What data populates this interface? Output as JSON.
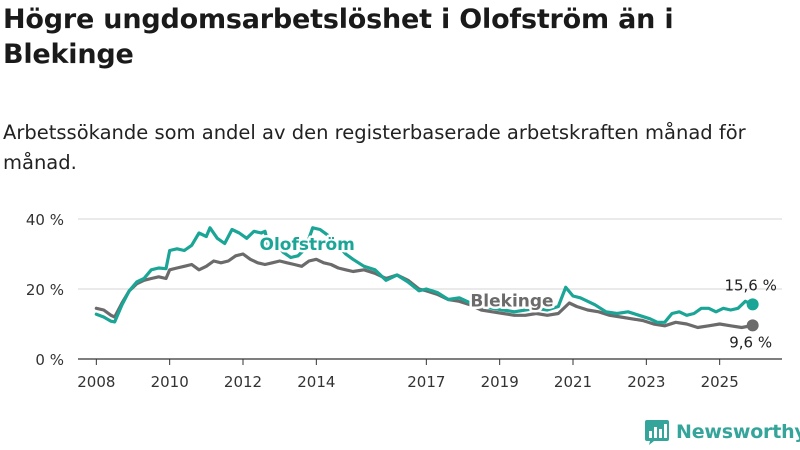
{
  "chart_data": {
    "type": "line",
    "title": "Högre ungdomsarbetslöshet i Olofström än i Blekinge",
    "subtitle": "Arbetssökande som andel av den registerbaserade arbetskraften månad för månad.",
    "ylim": [
      0,
      40
    ],
    "y_ticks": [
      {
        "value": 0,
        "label": "0 %"
      },
      {
        "value": 20,
        "label": "20 %"
      },
      {
        "value": 40,
        "label": "40 %"
      }
    ],
    "xlim": [
      2007.5,
      2026.7
    ],
    "x_ticks": [
      {
        "value": 2008,
        "label": "2008"
      },
      {
        "value": 2010,
        "label": "2010"
      },
      {
        "value": 2012,
        "label": "2012"
      },
      {
        "value": 2014,
        "label": "2014"
      },
      {
        "value": 2017,
        "label": "2017"
      },
      {
        "value": 2019,
        "label": "2019"
      },
      {
        "value": 2021,
        "label": "2021"
      },
      {
        "value": 2023,
        "label": "2023"
      },
      {
        "value": 2025,
        "label": "2025"
      }
    ],
    "series": [
      {
        "name": "Olofström",
        "color": "#1aa596",
        "end_label": "15,6 %",
        "points": [
          [
            2008.0,
            12.8
          ],
          [
            2008.2,
            12.0
          ],
          [
            2008.4,
            10.8
          ],
          [
            2008.5,
            10.6
          ],
          [
            2008.7,
            15.5
          ],
          [
            2008.9,
            19.5
          ],
          [
            2009.1,
            22.0
          ],
          [
            2009.3,
            23.0
          ],
          [
            2009.5,
            25.5
          ],
          [
            2009.7,
            26.0
          ],
          [
            2009.9,
            25.8
          ],
          [
            2010.0,
            31.0
          ],
          [
            2010.2,
            31.5
          ],
          [
            2010.4,
            31.0
          ],
          [
            2010.6,
            32.5
          ],
          [
            2010.8,
            36.0
          ],
          [
            2011.0,
            35.0
          ],
          [
            2011.1,
            37.5
          ],
          [
            2011.3,
            34.5
          ],
          [
            2011.5,
            33.0
          ],
          [
            2011.7,
            37.0
          ],
          [
            2011.9,
            36.0
          ],
          [
            2012.1,
            34.5
          ],
          [
            2012.3,
            36.5
          ],
          [
            2012.5,
            36.0
          ],
          [
            2012.6,
            36.5
          ],
          [
            2012.7,
            32.0
          ],
          [
            2012.9,
            33.0
          ],
          [
            2013.1,
            30.5
          ],
          [
            2013.3,
            29.0
          ],
          [
            2013.5,
            29.5
          ],
          [
            2013.7,
            31.5
          ],
          [
            2013.9,
            37.5
          ],
          [
            2014.1,
            37.0
          ],
          [
            2014.3,
            35.5
          ],
          [
            2014.5,
            33.5
          ],
          [
            2014.8,
            30.0
          ],
          [
            2015.0,
            28.5
          ],
          [
            2015.3,
            26.5
          ],
          [
            2015.6,
            25.5
          ],
          [
            2015.9,
            22.5
          ],
          [
            2016.2,
            24.0
          ],
          [
            2016.5,
            22.0
          ],
          [
            2016.8,
            19.5
          ],
          [
            2017.0,
            20.0
          ],
          [
            2017.3,
            19.0
          ],
          [
            2017.6,
            17.0
          ],
          [
            2017.9,
            17.5
          ],
          [
            2018.2,
            16.0
          ],
          [
            2018.5,
            15.0
          ],
          [
            2018.8,
            14.5
          ],
          [
            2019.1,
            14.0
          ],
          [
            2019.4,
            13.5
          ],
          [
            2019.7,
            14.0
          ],
          [
            2020.0,
            14.5
          ],
          [
            2020.3,
            14.0
          ],
          [
            2020.6,
            15.0
          ],
          [
            2020.8,
            20.5
          ],
          [
            2021.0,
            18.0
          ],
          [
            2021.2,
            17.5
          ],
          [
            2021.4,
            16.5
          ],
          [
            2021.6,
            15.5
          ],
          [
            2021.9,
            13.5
          ],
          [
            2022.2,
            13.0
          ],
          [
            2022.5,
            13.5
          ],
          [
            2022.8,
            12.5
          ],
          [
            2023.1,
            11.5
          ],
          [
            2023.3,
            10.5
          ],
          [
            2023.5,
            10.5
          ],
          [
            2023.7,
            13.0
          ],
          [
            2023.9,
            13.5
          ],
          [
            2024.1,
            12.5
          ],
          [
            2024.3,
            13.0
          ],
          [
            2024.5,
            14.5
          ],
          [
            2024.7,
            14.5
          ],
          [
            2024.9,
            13.5
          ],
          [
            2025.1,
            14.5
          ],
          [
            2025.3,
            14.0
          ],
          [
            2025.5,
            14.5
          ],
          [
            2025.7,
            16.5
          ],
          [
            2025.9,
            15.6
          ]
        ]
      },
      {
        "name": "Blekinge",
        "color": "#6b6b6b",
        "end_label": "9,6 %",
        "points": [
          [
            2008.0,
            14.5
          ],
          [
            2008.2,
            14.0
          ],
          [
            2008.4,
            12.5
          ],
          [
            2008.5,
            12.0
          ],
          [
            2008.7,
            16.0
          ],
          [
            2008.9,
            19.5
          ],
          [
            2009.1,
            21.5
          ],
          [
            2009.3,
            22.5
          ],
          [
            2009.5,
            23.0
          ],
          [
            2009.7,
            23.5
          ],
          [
            2009.9,
            23.0
          ],
          [
            2010.0,
            25.5
          ],
          [
            2010.2,
            26.0
          ],
          [
            2010.4,
            26.5
          ],
          [
            2010.6,
            27.0
          ],
          [
            2010.8,
            25.5
          ],
          [
            2011.0,
            26.5
          ],
          [
            2011.2,
            28.0
          ],
          [
            2011.4,
            27.5
          ],
          [
            2011.6,
            28.0
          ],
          [
            2011.8,
            29.5
          ],
          [
            2012.0,
            30.0
          ],
          [
            2012.2,
            28.5
          ],
          [
            2012.4,
            27.5
          ],
          [
            2012.6,
            27.0
          ],
          [
            2012.8,
            27.5
          ],
          [
            2013.0,
            28.0
          ],
          [
            2013.2,
            27.5
          ],
          [
            2013.4,
            27.0
          ],
          [
            2013.6,
            26.5
          ],
          [
            2013.8,
            28.0
          ],
          [
            2014.0,
            28.5
          ],
          [
            2014.2,
            27.5
          ],
          [
            2014.4,
            27.0
          ],
          [
            2014.6,
            26.0
          ],
          [
            2014.8,
            25.5
          ],
          [
            2015.0,
            25.0
          ],
          [
            2015.3,
            25.5
          ],
          [
            2015.6,
            24.5
          ],
          [
            2015.9,
            23.0
          ],
          [
            2016.2,
            24.0
          ],
          [
            2016.5,
            22.5
          ],
          [
            2016.8,
            20.0
          ],
          [
            2017.0,
            19.5
          ],
          [
            2017.3,
            18.5
          ],
          [
            2017.6,
            17.0
          ],
          [
            2017.9,
            16.5
          ],
          [
            2018.2,
            15.5
          ],
          [
            2018.5,
            14.0
          ],
          [
            2018.8,
            13.5
          ],
          [
            2019.1,
            13.0
          ],
          [
            2019.4,
            12.5
          ],
          [
            2019.7,
            12.5
          ],
          [
            2020.0,
            13.0
          ],
          [
            2020.3,
            12.5
          ],
          [
            2020.6,
            13.0
          ],
          [
            2020.9,
            16.0
          ],
          [
            2021.1,
            15.0
          ],
          [
            2021.4,
            14.0
          ],
          [
            2021.7,
            13.5
          ],
          [
            2022.0,
            12.5
          ],
          [
            2022.3,
            12.0
          ],
          [
            2022.6,
            11.5
          ],
          [
            2022.9,
            11.0
          ],
          [
            2023.2,
            10.0
          ],
          [
            2023.5,
            9.5
          ],
          [
            2023.8,
            10.5
          ],
          [
            2024.1,
            10.0
          ],
          [
            2024.4,
            9.0
          ],
          [
            2024.7,
            9.5
          ],
          [
            2025.0,
            10.0
          ],
          [
            2025.3,
            9.5
          ],
          [
            2025.6,
            9.0
          ],
          [
            2025.9,
            9.6
          ]
        ]
      }
    ],
    "annotations": [
      {
        "text": "Olofström",
        "series": "Olofström",
        "x": 2012.45,
        "y": 31.2
      },
      {
        "text": "Blekinge",
        "series": "Blekinge",
        "x": 2018.2,
        "y": 15.0
      }
    ]
  },
  "brand": {
    "name": "Newsworthy",
    "color": "#35a59b"
  }
}
